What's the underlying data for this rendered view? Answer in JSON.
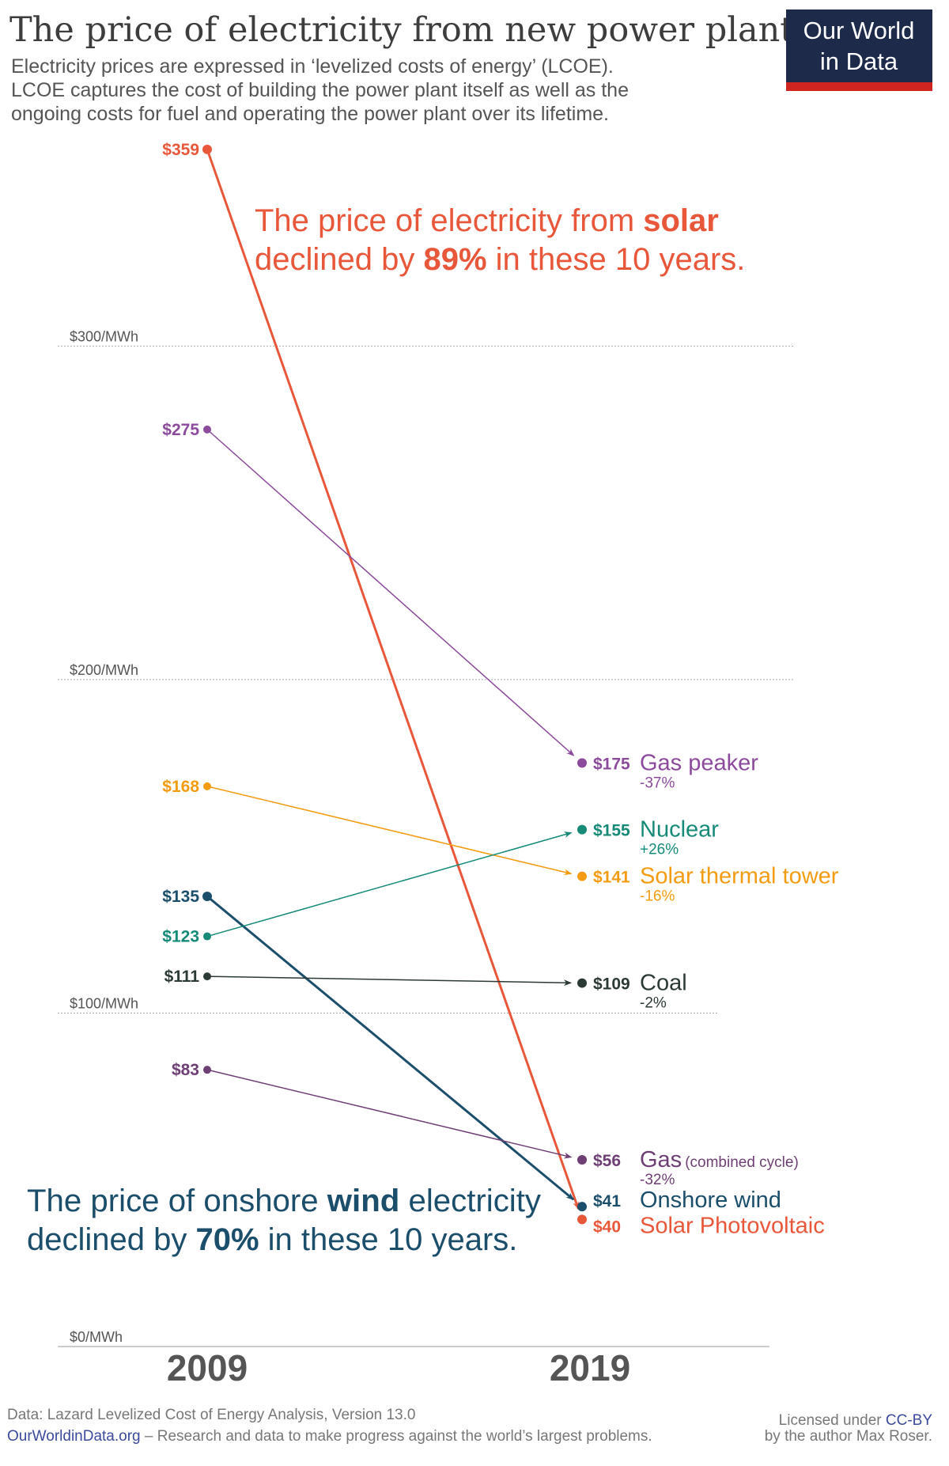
{
  "header": {
    "title": "The price of electricity from new power plants",
    "subtitle": [
      "Electricity prices are expressed in ‘levelized costs of energy’ (LCOE).",
      "LCOE captures the cost of building the power plant itself as well as the",
      "ongoing costs for fuel and operating the power plant over its lifetime."
    ],
    "logo": [
      "Our World",
      "in Data"
    ]
  },
  "chart_data": {
    "type": "line",
    "x": [
      "2009",
      "2019"
    ],
    "ylim": [
      0,
      360
    ],
    "yticks": [
      {
        "v": 0,
        "label": "$0/MWh"
      },
      {
        "v": 100,
        "label": "$100/MWh"
      },
      {
        "v": 200,
        "label": "$200/MWh"
      },
      {
        "v": 300,
        "label": "$300/MWh"
      }
    ],
    "series": [
      {
        "name": "Solar Photovoltaic",
        "start": 359,
        "end": 40,
        "start_label": "$359",
        "end_label": "$40",
        "change": "",
        "color": "#e9573b"
      },
      {
        "name": "Gas peaker",
        "start": 275,
        "end": 175,
        "start_label": "$275",
        "end_label": "$175",
        "change": "-37%",
        "color": "#8b4a9c"
      },
      {
        "name": "Solar thermal tower",
        "start": 168,
        "end": 141,
        "start_label": "$168",
        "end_label": "$141",
        "change": "-16%",
        "color": "#f39c12"
      },
      {
        "name": "Onshore wind",
        "start": 135,
        "end": 41,
        "start_label": "$135",
        "end_label": "$41",
        "change": "",
        "color": "#1b4e6b"
      },
      {
        "name": "Nuclear",
        "start": 123,
        "end": 155,
        "start_label": "$123",
        "end_label": "$155",
        "change": "+26%",
        "color": "#168a77"
      },
      {
        "name": "Coal",
        "start": 111,
        "end": 109,
        "start_label": "$111",
        "end_label": "$109",
        "change": "-2%",
        "color": "#2c3a36"
      },
      {
        "name": "Gas",
        "name_suffix": "(combined cycle)",
        "start": 83,
        "end": 56,
        "start_label": "$83",
        "end_label": "$56",
        "change": "-32%",
        "color": "#6e3f74"
      }
    ],
    "annotations": {
      "solar": [
        "The price of electricity from ",
        "solar",
        "declined by ",
        "89%",
        " in these 10 years."
      ],
      "wind": [
        "The price of onshore ",
        "wind",
        " electricity",
        "declined by ",
        "70%",
        " in these 10 years."
      ]
    }
  },
  "footer": {
    "source": "Data: Lazard Levelized Cost of Energy Analysis, Version 13.0",
    "site": "OurWorldinData.org",
    "tagline": " – Research and data to make progress against the world’s largest problems.",
    "license1": "Licensed under ",
    "license_link": "CC-BY",
    "license2": "by the author Max Roser."
  }
}
